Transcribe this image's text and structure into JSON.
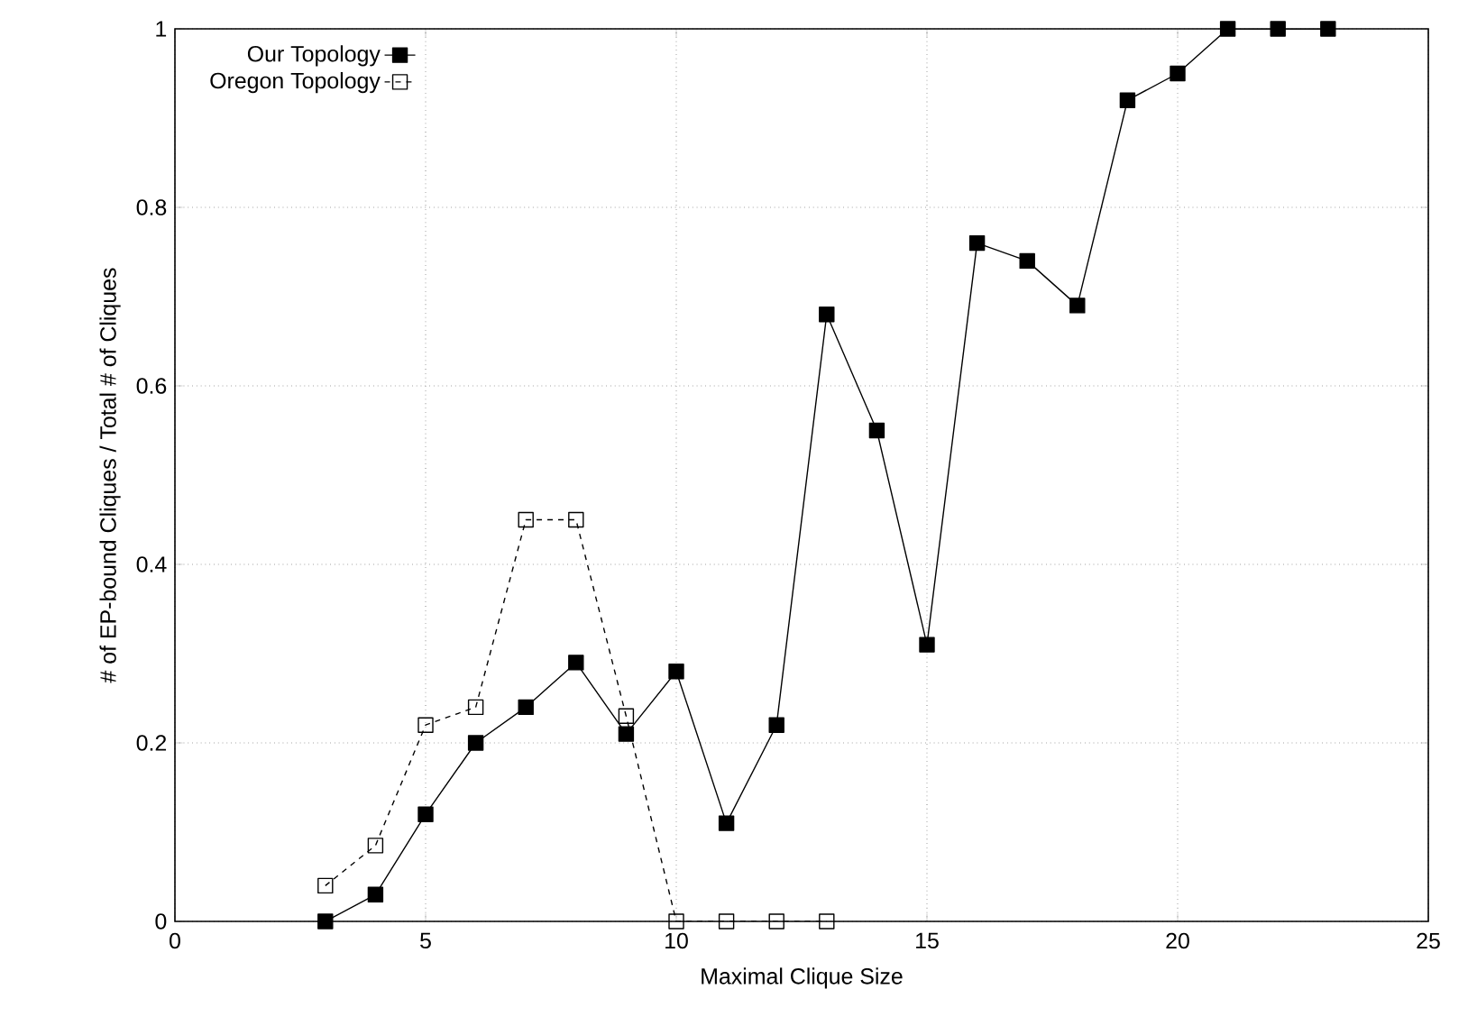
{
  "chart_data": {
    "type": "line",
    "xlabel": "Maximal Clique Size",
    "ylabel": "# of EP-bound Cliques / Total # of Cliques",
    "xlim": [
      0,
      25
    ],
    "xticks": [
      0,
      5,
      10,
      15,
      20,
      25
    ],
    "ylim": [
      0,
      1
    ],
    "yticks": [
      0,
      0.2,
      0.4,
      0.6,
      0.8,
      1
    ],
    "grid": true,
    "legend": "top left",
    "marker": "square",
    "series": [
      {
        "name": "Our Topology",
        "color": "#000000",
        "line_style": "solid",
        "x": [
          3,
          4,
          5,
          6,
          7,
          8,
          9,
          10,
          11,
          12,
          13,
          14,
          15,
          16,
          17,
          18,
          19,
          20,
          21,
          22,
          23
        ],
        "values": [
          0,
          0.03,
          0.12,
          0.2,
          0.24,
          0.29,
          0.21,
          0.28,
          0.11,
          0.22,
          0.68,
          0.55,
          0.31,
          0.76,
          0.74,
          0.69,
          0.92,
          0.95,
          1,
          1,
          1
        ]
      },
      {
        "name": "Oregon Topology",
        "color": "#000000",
        "line_style": "dashed",
        "x": [
          3,
          4,
          5,
          6,
          7,
          8,
          9,
          10,
          11,
          12,
          13
        ],
        "values": [
          0.04,
          0.085,
          0.22,
          0.24,
          0.45,
          0.45,
          0.23,
          0,
          0,
          0,
          0
        ]
      }
    ]
  }
}
